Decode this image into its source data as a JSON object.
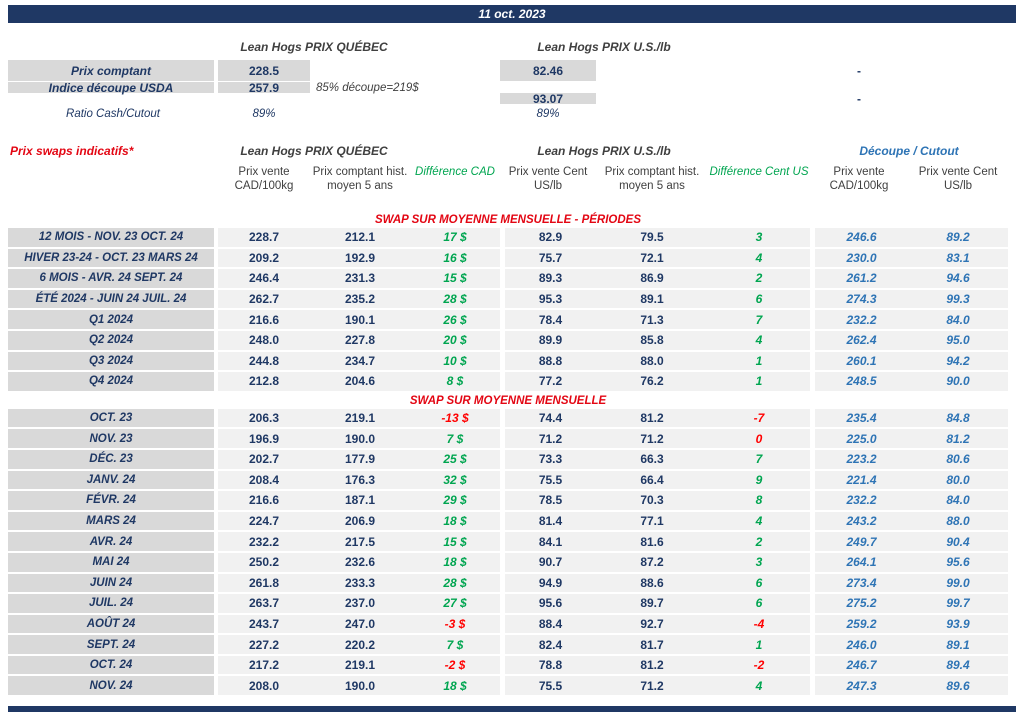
{
  "colors": {
    "navy": "#1F3864",
    "red": "#E30613",
    "green": "#00A550",
    "blue": "#2E74B5",
    "gray": "#D9D9D9",
    "stripe": "#F1F1F1"
  },
  "title_bar": {
    "date": "11 oct. 2023"
  },
  "spot": {
    "quebec_header": "Lean Hogs PRIX QUÉBEC",
    "us_header": "Lean Hogs PRIX U.S./lb",
    "rows": {
      "cash": {
        "label": "Prix comptant",
        "quebec": "228.5",
        "us": "82.46",
        "dash": "-"
      },
      "cutout": {
        "label": "Indice découpe USDA",
        "quebec": "257.9",
        "note": "85% découpe=219$",
        "us": "93.07",
        "dash": "-"
      },
      "ratio": {
        "label": "Ratio Cash/Cutout",
        "quebec": "89%",
        "us": "89%"
      }
    }
  },
  "swaps": {
    "section_label": "Prix swaps indicatifs*",
    "quebec_header": "Lean Hogs PRIX QUÉBEC",
    "us_header": "Lean Hogs PRIX U.S./lb",
    "cutout_header": "Découpe / Cutout",
    "column_headers": [
      "Prix vente CAD/100kg",
      "Prix comptant hist. moyen 5 ans",
      "Différence CAD",
      "Prix vente Cent US/lb",
      "Prix comptant hist. moyen 5 ans",
      "Différence Cent US",
      "Prix vente CAD/100kg",
      "Prix vente Cent US/lb"
    ],
    "sections": [
      {
        "title": "SWAP SUR MOYENNE MENSUELLE - PÉRIODES",
        "rows": [
          {
            "label": "12 MOIS - NOV. 23 OCT. 24",
            "cad_sale": "228.7",
            "cad_hist": "212.1",
            "cad_diff": "17 $",
            "us_sale": "82.9",
            "us_hist": "79.5",
            "us_diff": "3",
            "cutout_cad": "246.6",
            "cutout_us": "89.2"
          },
          {
            "label": "HIVER 23-24 - OCT. 23 MARS 24",
            "cad_sale": "209.2",
            "cad_hist": "192.9",
            "cad_diff": "16 $",
            "us_sale": "75.7",
            "us_hist": "72.1",
            "us_diff": "4",
            "cutout_cad": "230.0",
            "cutout_us": "83.1"
          },
          {
            "label": "6 MOIS - AVR. 24 SEPT. 24",
            "cad_sale": "246.4",
            "cad_hist": "231.3",
            "cad_diff": "15 $",
            "us_sale": "89.3",
            "us_hist": "86.9",
            "us_diff": "2",
            "cutout_cad": "261.2",
            "cutout_us": "94.6"
          },
          {
            "label": "ÉTÉ 2024 - JUIN 24 JUIL. 24",
            "cad_sale": "262.7",
            "cad_hist": "235.2",
            "cad_diff": "28 $",
            "us_sale": "95.3",
            "us_hist": "89.1",
            "us_diff": "6",
            "cutout_cad": "274.3",
            "cutout_us": "99.3"
          },
          {
            "label": "Q1 2024",
            "cad_sale": "216.6",
            "cad_hist": "190.1",
            "cad_diff": "26 $",
            "us_sale": "78.4",
            "us_hist": "71.3",
            "us_diff": "7",
            "cutout_cad": "232.2",
            "cutout_us": "84.0"
          },
          {
            "label": "Q2 2024",
            "cad_sale": "248.0",
            "cad_hist": "227.8",
            "cad_diff": "20 $",
            "us_sale": "89.9",
            "us_hist": "85.8",
            "us_diff": "4",
            "cutout_cad": "262.4",
            "cutout_us": "95.0"
          },
          {
            "label": "Q3 2024",
            "cad_sale": "244.8",
            "cad_hist": "234.7",
            "cad_diff": "10 $",
            "us_sale": "88.8",
            "us_hist": "88.0",
            "us_diff": "1",
            "cutout_cad": "260.1",
            "cutout_us": "94.2"
          },
          {
            "label": "Q4 2024",
            "cad_sale": "212.8",
            "cad_hist": "204.6",
            "cad_diff": "8 $",
            "us_sale": "77.2",
            "us_hist": "76.2",
            "us_diff": "1",
            "cutout_cad": "248.5",
            "cutout_us": "90.0"
          }
        ]
      },
      {
        "title": "SWAP SUR MOYENNE MENSUELLE",
        "rows": [
          {
            "label": "OCT. 23",
            "cad_sale": "206.3",
            "cad_hist": "219.1",
            "cad_diff": "-13 $",
            "us_sale": "74.4",
            "us_hist": "81.2",
            "us_diff": "-7",
            "cutout_cad": "235.4",
            "cutout_us": "84.8"
          },
          {
            "label": "NOV. 23",
            "cad_sale": "196.9",
            "cad_hist": "190.0",
            "cad_diff": "7 $",
            "us_sale": "71.2",
            "us_hist": "71.2",
            "us_diff": "0",
            "cutout_cad": "225.0",
            "cutout_us": "81.2"
          },
          {
            "label": "DÉC. 23",
            "cad_sale": "202.7",
            "cad_hist": "177.9",
            "cad_diff": "25 $",
            "us_sale": "73.3",
            "us_hist": "66.3",
            "us_diff": "7",
            "cutout_cad": "223.2",
            "cutout_us": "80.6"
          },
          {
            "label": "JANV. 24",
            "cad_sale": "208.4",
            "cad_hist": "176.3",
            "cad_diff": "32 $",
            "us_sale": "75.5",
            "us_hist": "66.4",
            "us_diff": "9",
            "cutout_cad": "221.4",
            "cutout_us": "80.0"
          },
          {
            "label": "FÉVR. 24",
            "cad_sale": "216.6",
            "cad_hist": "187.1",
            "cad_diff": "29 $",
            "us_sale": "78.5",
            "us_hist": "70.3",
            "us_diff": "8",
            "cutout_cad": "232.2",
            "cutout_us": "84.0"
          },
          {
            "label": "MARS 24",
            "cad_sale": "224.7",
            "cad_hist": "206.9",
            "cad_diff": "18 $",
            "us_sale": "81.4",
            "us_hist": "77.1",
            "us_diff": "4",
            "cutout_cad": "243.2",
            "cutout_us": "88.0"
          },
          {
            "label": "AVR. 24",
            "cad_sale": "232.2",
            "cad_hist": "217.5",
            "cad_diff": "15 $",
            "us_sale": "84.1",
            "us_hist": "81.6",
            "us_diff": "2",
            "cutout_cad": "249.7",
            "cutout_us": "90.4"
          },
          {
            "label": "MAI 24",
            "cad_sale": "250.2",
            "cad_hist": "232.6",
            "cad_diff": "18 $",
            "us_sale": "90.7",
            "us_hist": "87.2",
            "us_diff": "3",
            "cutout_cad": "264.1",
            "cutout_us": "95.6"
          },
          {
            "label": "JUIN 24",
            "cad_sale": "261.8",
            "cad_hist": "233.3",
            "cad_diff": "28 $",
            "us_sale": "94.9",
            "us_hist": "88.6",
            "us_diff": "6",
            "cutout_cad": "273.4",
            "cutout_us": "99.0"
          },
          {
            "label": "JUIL. 24",
            "cad_sale": "263.7",
            "cad_hist": "237.0",
            "cad_diff": "27 $",
            "us_sale": "95.6",
            "us_hist": "89.7",
            "us_diff": "6",
            "cutout_cad": "275.2",
            "cutout_us": "99.7"
          },
          {
            "label": "AOÛT 24",
            "cad_sale": "243.7",
            "cad_hist": "247.0",
            "cad_diff": "-3 $",
            "us_sale": "88.4",
            "us_hist": "92.7",
            "us_diff": "-4",
            "cutout_cad": "259.2",
            "cutout_us": "93.9"
          },
          {
            "label": "SEPT. 24",
            "cad_sale": "227.2",
            "cad_hist": "220.2",
            "cad_diff": "7 $",
            "us_sale": "82.4",
            "us_hist": "81.7",
            "us_diff": "1",
            "cutout_cad": "246.0",
            "cutout_us": "89.1"
          },
          {
            "label": "OCT. 24",
            "cad_sale": "217.2",
            "cad_hist": "219.1",
            "cad_diff": "-2 $",
            "us_sale": "78.8",
            "us_hist": "81.2",
            "us_diff": "-2",
            "cutout_cad": "246.7",
            "cutout_us": "89.4"
          },
          {
            "label": "NOV. 24",
            "cad_sale": "208.0",
            "cad_hist": "190.0",
            "cad_diff": "18 $",
            "us_sale": "75.5",
            "us_hist": "71.2",
            "us_diff": "4",
            "cutout_cad": "247.3",
            "cutout_us": "89.6"
          }
        ]
      }
    ]
  }
}
